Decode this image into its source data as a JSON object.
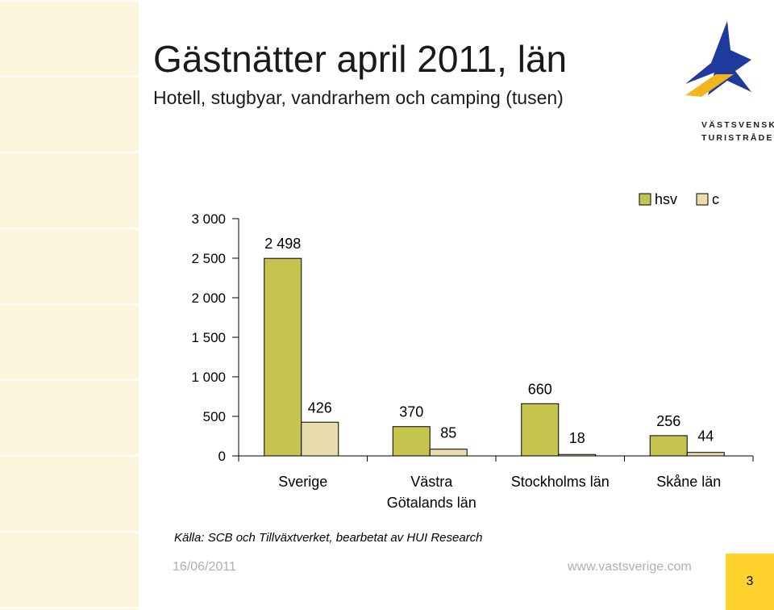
{
  "header": {
    "title": "Gästnätter april 2011, län",
    "subtitle": "Hotell, stugbyar, vandrarhem och camping (tusen)"
  },
  "logo": {
    "icon": "vastsvenska-turistradet-star-logo",
    "text_line1": "VÄSTSVENSKA",
    "text_line2": "TURISTRÅDET"
  },
  "chart_data": {
    "type": "bar",
    "title": "",
    "xlabel": "",
    "ylabel": "",
    "ylim": [
      0,
      3000
    ],
    "yticks": [
      0,
      500,
      1000,
      1500,
      2000,
      2500,
      3000
    ],
    "ytick_labels": [
      "0",
      "500",
      "1 000",
      "1 500",
      "2 000",
      "2 500",
      "3 000"
    ],
    "categories": [
      [
        "Sverige"
      ],
      [
        "Västra",
        "Götalands län"
      ],
      [
        "Stockholms län"
      ],
      [
        "Skåne län"
      ]
    ],
    "series": [
      {
        "name": "hsv",
        "color": "#c5c44e",
        "values": [
          2498,
          370,
          660,
          256
        ],
        "labels": [
          "2 498",
          "370",
          "660",
          "256"
        ]
      },
      {
        "name": "c",
        "color": "#e7dcaa",
        "values": [
          426,
          85,
          18,
          44
        ],
        "labels": [
          "426",
          "85",
          "18",
          "44"
        ]
      }
    ],
    "legend_position": "top-right",
    "grid": false
  },
  "source": "Källa: SCB och Tillväxtverket, bearbetat av HUI Research",
  "footer": {
    "date": "16/06/2011",
    "url": "www.vastsverige.com",
    "page": "3"
  }
}
